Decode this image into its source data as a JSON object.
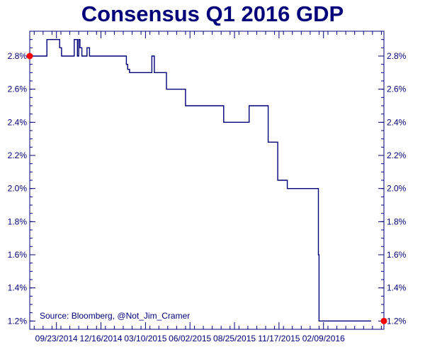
{
  "chart_data": {
    "type": "line",
    "title": "Consensus Q1 2016 GDP",
    "xlabel": "",
    "ylabel": "",
    "source_note": "Source: Bloomberg, @Not_Jim_Cramer",
    "ylim": [
      1.15,
      2.95
    ],
    "xlim": [
      0,
      557
    ],
    "y_ticks": [
      {
        "value": 1.2,
        "label": "1.2%"
      },
      {
        "value": 1.4,
        "label": "1.4%"
      },
      {
        "value": 1.6,
        "label": "1.6%"
      },
      {
        "value": 1.8,
        "label": "1.8%"
      },
      {
        "value": 2.0,
        "label": "2.0%"
      },
      {
        "value": 2.2,
        "label": "2.2%"
      },
      {
        "value": 2.4,
        "label": "2.4%"
      },
      {
        "value": 2.6,
        "label": "2.6%"
      },
      {
        "value": 2.8,
        "label": "2.8%"
      }
    ],
    "x_ticks": [
      {
        "value": 42,
        "label": "09/23/2014"
      },
      {
        "value": 112,
        "label": "12/16/2014"
      },
      {
        "value": 182,
        "label": "03/10/2015"
      },
      {
        "value": 252,
        "label": "06/02/2015"
      },
      {
        "value": 322,
        "label": "08/25/2015"
      },
      {
        "value": 392,
        "label": "11/17/2015"
      },
      {
        "value": 462,
        "label": "02/09/2016"
      }
    ],
    "grid": false,
    "series": [
      {
        "name": "",
        "color": "#00007a",
        "step": true,
        "x": [
          0,
          27,
          47,
          50,
          54,
          70,
          75,
          77,
          79,
          82,
          88,
          90,
          94,
          152,
          154,
          157,
          190,
          192,
          196,
          205,
          215,
          225,
          245,
          255,
          305,
          315,
          345,
          355,
          375,
          390,
          395,
          405,
          425,
          435,
          451,
          454,
          455,
          457,
          458,
          462,
          469,
          477,
          525,
          532,
          537
        ],
        "values": [
          2.8,
          2.9,
          2.85,
          2.8,
          2.8,
          2.9,
          2.8,
          2.9,
          2.85,
          2.8,
          2.8,
          2.85,
          2.8,
          2.75,
          2.72,
          2.7,
          2.7,
          2.8,
          2.7,
          2.7,
          2.6,
          2.6,
          2.5,
          2.5,
          2.4,
          2.4,
          2.5,
          2.5,
          2.28,
          2.05,
          2.05,
          2.0,
          2.0,
          2.0,
          2.0,
          1.6,
          1.2,
          1.2,
          1.2,
          1.2,
          1.2,
          1.2,
          1.2,
          1.2,
          1.2
        ]
      }
    ],
    "highlighted_points": [
      {
        "x": 0,
        "value": 2.8,
        "color": "#ff0000"
      },
      {
        "x": 557,
        "value": 1.2,
        "color": "#ff0000"
      }
    ]
  }
}
